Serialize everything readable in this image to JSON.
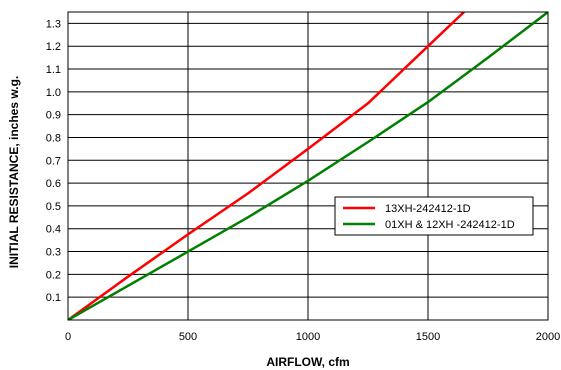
{
  "chart_data": {
    "type": "line",
    "xlabel": "AIRFLOW, cfm",
    "ylabel": "INITIAL RESISTANCE, inches w.g.",
    "xlim": [
      0,
      2000
    ],
    "ylim": [
      0,
      1.35
    ],
    "x_ticks": [
      0,
      500,
      1000,
      1500,
      2000
    ],
    "x_tick_labels": [
      "0",
      "500",
      "1000",
      "1500",
      "2000"
    ],
    "y_ticks": [
      0.1,
      0.2,
      0.3,
      0.4,
      0.5,
      0.6,
      0.7,
      0.8,
      0.9,
      1.0,
      1.1,
      1.2,
      1.3
    ],
    "y_tick_labels": [
      "0.1",
      "0.2",
      "0.3",
      "0.4",
      "0.5",
      "0.6",
      "0.7",
      "0.8",
      "0.9",
      "1.0",
      "1.1",
      "1.2",
      "1.3"
    ],
    "grid": true,
    "legend_position": "right-middle",
    "series": [
      {
        "name": "13XH-242412-1D",
        "color": "#ff0000",
        "x": [
          0,
          250,
          500,
          750,
          1000,
          1250,
          1500,
          1650
        ],
        "y": [
          0,
          0.19,
          0.375,
          0.555,
          0.75,
          0.95,
          1.2,
          1.35
        ]
      },
      {
        "name": "01XH & 12XH -242412-1D",
        "color": "#008000",
        "x": [
          0,
          250,
          500,
          750,
          1000,
          1250,
          1500,
          1750,
          2000
        ],
        "y": [
          0,
          0.15,
          0.3,
          0.45,
          0.61,
          0.78,
          0.955,
          1.15,
          1.35
        ]
      }
    ]
  }
}
